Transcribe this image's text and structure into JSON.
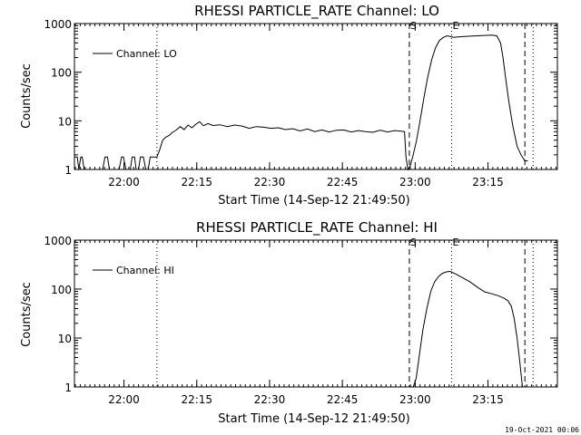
{
  "footer": "19-Oct-2021 00:06",
  "chart_data": [
    {
      "type": "line",
      "title": "RHESSI PARTICLE_RATE Channel: LO",
      "xlabel": "Start Time (14-Sep-12 21:49:50)",
      "ylabel": "Counts/sec",
      "x_unit": "minutes after start",
      "xlim": [
        0,
        99.5
      ],
      "ylim": [
        1,
        1000
      ],
      "yscale": "log",
      "grid": false,
      "legend_position": "top-left",
      "x_ticks": [
        {
          "x": 10.2,
          "label": "22:00"
        },
        {
          "x": 25.2,
          "label": "22:15"
        },
        {
          "x": 40.2,
          "label": "22:30"
        },
        {
          "x": 55.2,
          "label": "22:45"
        },
        {
          "x": 70.2,
          "label": "23:00"
        },
        {
          "x": 85.2,
          "label": "23:15"
        }
      ],
      "y_ticks": [
        {
          "y": 1,
          "label": "1"
        },
        {
          "y": 10,
          "label": "10"
        },
        {
          "y": 100,
          "label": "100"
        },
        {
          "y": 1000,
          "label": "1000"
        }
      ],
      "markers": [
        {
          "x": 17.0,
          "style": "dotted",
          "label": ""
        },
        {
          "x": 69.0,
          "style": "dashed",
          "label": "S"
        },
        {
          "x": 77.7,
          "style": "dotted",
          "label": "E"
        },
        {
          "x": 92.8,
          "style": "dashed",
          "label": ""
        },
        {
          "x": 94.5,
          "style": "dotted",
          "label": ""
        }
      ],
      "series": [
        {
          "name": "Channel: LO",
          "x": [
            0,
            0.6,
            0.9,
            1.3,
            1.6,
            2.0,
            2.4,
            5.8,
            6.3,
            6.8,
            7.2,
            9.2,
            9.7,
            10.1,
            10.6,
            11.5,
            11.9,
            12.4,
            12.7,
            13.2,
            13.6,
            14.2,
            14.7,
            15.2,
            15.6,
            16.1,
            16.6,
            17.0,
            17.6,
            18.2,
            18.8,
            19.5,
            20.2,
            21.0,
            21.8,
            22.6,
            23.4,
            24.2,
            25.0,
            25.8,
            26.6,
            27.5,
            28.5,
            30,
            31.5,
            33,
            34.5,
            36,
            37.5,
            39,
            40.5,
            42,
            43.5,
            45,
            46.5,
            48,
            49.5,
            51,
            52.5,
            54,
            55.5,
            57,
            58.5,
            60,
            61.5,
            63,
            64.5,
            66,
            67.5,
            68.0,
            68.3,
            68.7,
            69.2,
            69.8,
            70.5,
            71.2,
            72.0,
            72.8,
            73.6,
            74.4,
            75.2,
            76.0,
            76.8,
            77.5,
            78.2,
            79.0,
            80,
            81.5,
            83,
            84.5,
            86,
            87,
            87.8,
            88.3,
            88.8,
            89.5,
            90.3,
            91.2,
            92.0,
            92.8,
            93.4
          ],
          "y": [
            1.8,
            1.8,
            1,
            1.8,
            1.8,
            1,
            1,
            1,
            1.8,
            1.8,
            1,
            1,
            1.8,
            1.8,
            1,
            1,
            1.8,
            1.8,
            1,
            1,
            1.8,
            1.8,
            1,
            1,
            1.8,
            1.8,
            1.8,
            1.8,
            2.6,
            4.0,
            4.6,
            5.0,
            5.8,
            6.5,
            7.6,
            6.6,
            8.2,
            7.2,
            8.5,
            9.6,
            7.9,
            8.8,
            8.0,
            8.3,
            7.6,
            8.2,
            7.8,
            7.0,
            7.6,
            7.4,
            7.0,
            7.2,
            6.6,
            6.9,
            6.2,
            6.8,
            6.0,
            6.5,
            5.9,
            6.4,
            6.5,
            5.9,
            6.3,
            6.0,
            5.8,
            6.4,
            5.9,
            6.3,
            6.1,
            6.0,
            1.8,
            1.0,
            1.2,
            2.0,
            4.0,
            10,
            30,
            80,
            180,
            320,
            450,
            520,
            560,
            540,
            520,
            530,
            540,
            550,
            560,
            570,
            580,
            560,
            400,
            200,
            80,
            25,
            8,
            3,
            2.0,
            1.5,
            1.5
          ]
        }
      ]
    },
    {
      "type": "line",
      "title": "RHESSI PARTICLE_RATE Channel: HI",
      "xlabel": "Start Time (14-Sep-12 21:49:50)",
      "ylabel": "Counts/sec",
      "x_unit": "minutes after start",
      "xlim": [
        0,
        99.5
      ],
      "ylim": [
        1,
        1000
      ],
      "yscale": "log",
      "grid": false,
      "legend_position": "top-left",
      "x_ticks": [
        {
          "x": 10.2,
          "label": "22:00"
        },
        {
          "x": 25.2,
          "label": "22:15"
        },
        {
          "x": 40.2,
          "label": "22:30"
        },
        {
          "x": 55.2,
          "label": "22:45"
        },
        {
          "x": 70.2,
          "label": "23:00"
        },
        {
          "x": 85.2,
          "label": "23:15"
        }
      ],
      "y_ticks": [
        {
          "y": 1,
          "label": "1"
        },
        {
          "y": 10,
          "label": "10"
        },
        {
          "y": 100,
          "label": "100"
        },
        {
          "y": 1000,
          "label": "1000"
        }
      ],
      "markers": [
        {
          "x": 17.0,
          "style": "dotted",
          "label": ""
        },
        {
          "x": 69.0,
          "style": "dashed",
          "label": "S"
        },
        {
          "x": 77.7,
          "style": "dotted",
          "label": "E"
        },
        {
          "x": 92.8,
          "style": "dashed",
          "label": ""
        },
        {
          "x": 94.5,
          "style": "dotted",
          "label": ""
        }
      ],
      "series": [
        {
          "name": "Channel: HI",
          "x": [
            69.8,
            70.4,
            71.0,
            71.8,
            72.6,
            73.4,
            74.2,
            75.0,
            75.8,
            76.6,
            77.4,
            78.5,
            80,
            81.5,
            83,
            84.5,
            86,
            87.5,
            88.5,
            89.3,
            90.0,
            90.6,
            91.2,
            91.8,
            92.3
          ],
          "y": [
            1,
            1.5,
            4,
            15,
            40,
            90,
            140,
            180,
            210,
            225,
            230,
            205,
            170,
            140,
            110,
            88,
            80,
            72,
            65,
            58,
            45,
            25,
            10,
            3,
            1
          ]
        }
      ]
    }
  ]
}
